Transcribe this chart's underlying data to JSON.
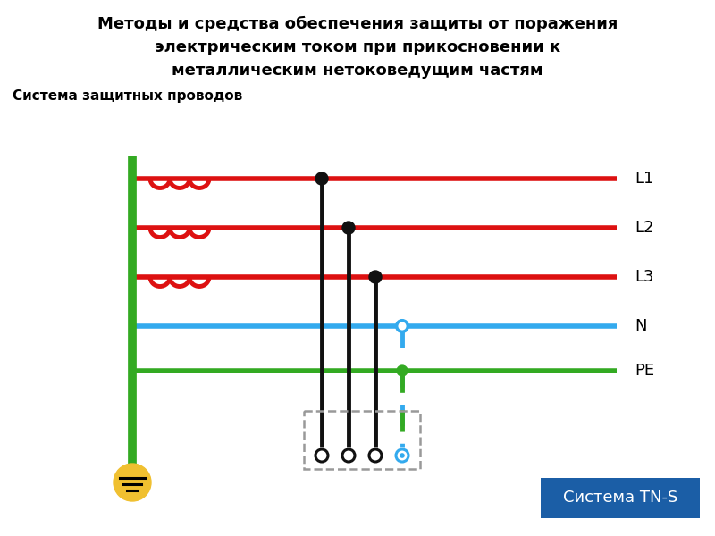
{
  "title_line1": "Методы и средства обеспечения защиты от поражения",
  "title_line2": "электрическим током при прикосновении к",
  "title_line3": "металлическим нетоковедущим частям",
  "subtitle": "Система защитных проводов",
  "label_L1": "L1",
  "label_L2": "L2",
  "label_L3": "L3",
  "label_N": "N",
  "label_PE": "PE",
  "label_system": "Система TN-S",
  "bg_color": "#ffffff",
  "red_color": "#dd1111",
  "green_color": "#33aa22",
  "blue_color": "#33aaee",
  "black_color": "#111111",
  "yellow_color": "#f0c030",
  "system_box_color": "#1b5ea6",
  "dashed_rect_color": "#999999",
  "title_fontsize": 13,
  "subtitle_fontsize": 11,
  "label_fontsize": 13
}
